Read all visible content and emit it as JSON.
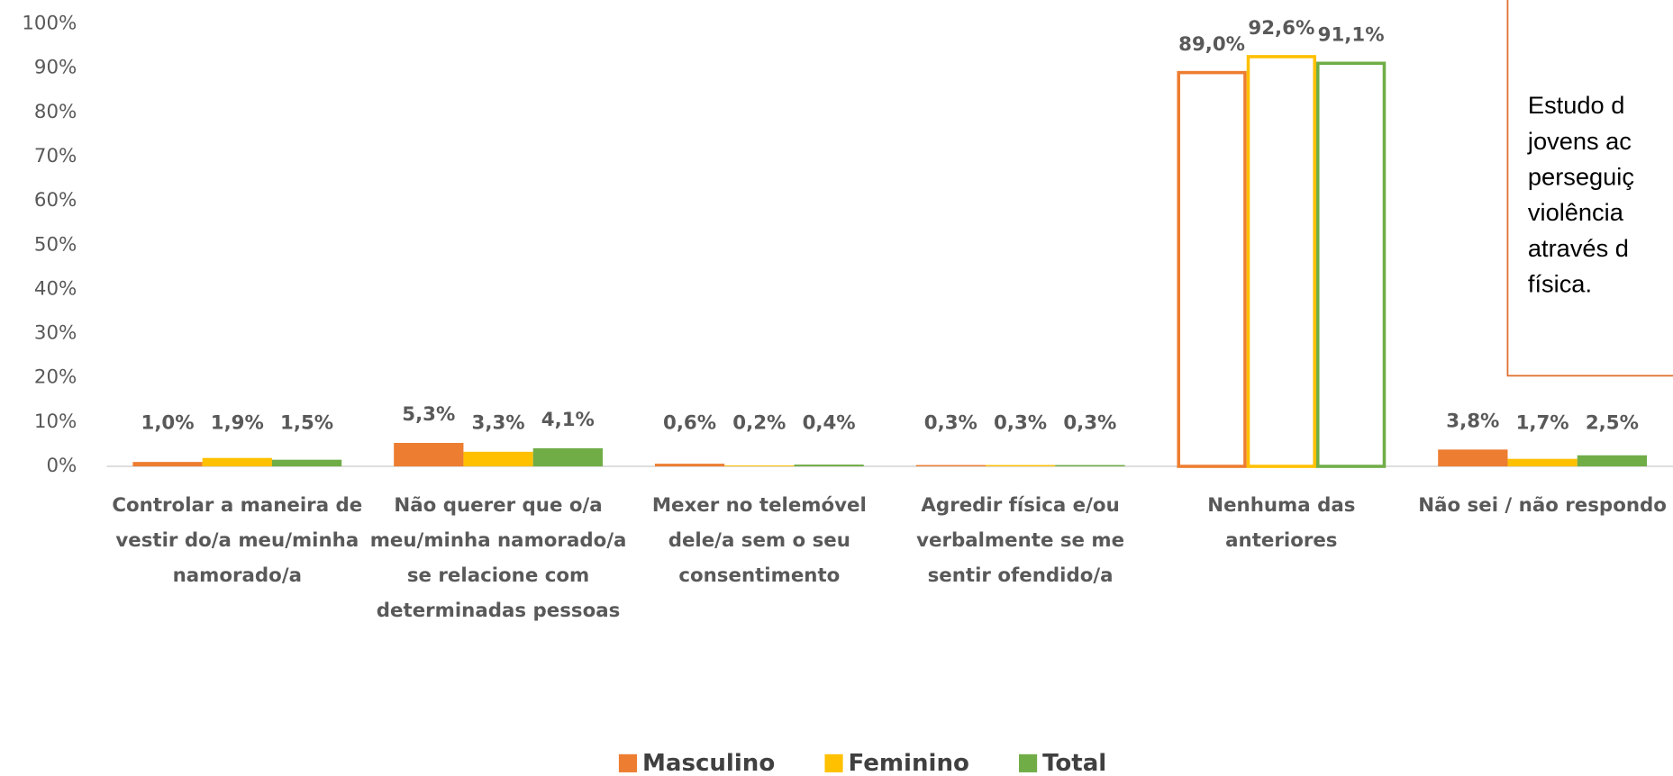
{
  "chart_data": {
    "type": "bar",
    "categories": [
      "Controlar a maneira de vestir do/a meu/minha namorado/a",
      "Não querer que o/a meu/minha namorado/a se relacione com determinadas pessoas",
      "Mexer no telemóvel dele/a sem o seu consentimento",
      "Agredir física e/ou verbalmente se me sentir ofendido/a",
      "Nenhuma das anteriores",
      "Não sei / não respondo"
    ],
    "series": [
      {
        "name": "Masculino",
        "color": "#ed7d31",
        "values": [
          1.0,
          5.3,
          0.6,
          0.3,
          89.0,
          3.8
        ],
        "value_labels": [
          "1,0%",
          "5,3%",
          "0,6%",
          "0,3%",
          "89,0%",
          "3,8%"
        ]
      },
      {
        "name": "Feminino",
        "color": "#ffc000",
        "values": [
          1.9,
          3.3,
          0.2,
          0.3,
          92.6,
          1.7
        ],
        "value_labels": [
          "1,9%",
          "3,3%",
          "0,2%",
          "0,3%",
          "92,6%",
          "1,7%"
        ]
      },
      {
        "name": "Total",
        "color": "#70ad47",
        "values": [
          1.5,
          4.1,
          0.4,
          0.3,
          91.1,
          2.5
        ],
        "value_labels": [
          "1,5%",
          "4,1%",
          "0,4%",
          "0,3%",
          "91,1%",
          "2,5%"
        ]
      }
    ],
    "bar_fill": [
      "solid",
      "solid",
      "solid",
      "solid",
      "outline",
      "solid"
    ],
    "ylim": [
      0,
      100
    ],
    "yticks": [
      {
        "value": 0,
        "label": "0%"
      },
      {
        "value": 10,
        "label": "10%"
      },
      {
        "value": 20,
        "label": "20%"
      },
      {
        "value": 30,
        "label": "30%"
      },
      {
        "value": 40,
        "label": "40%"
      },
      {
        "value": 50,
        "label": "50%"
      },
      {
        "value": 60,
        "label": "60%"
      },
      {
        "value": 70,
        "label": "70%"
      },
      {
        "value": 80,
        "label": "80%"
      },
      {
        "value": 90,
        "label": "90%"
      },
      {
        "value": 100,
        "label": "100%"
      }
    ],
    "grid": false,
    "legend": "bottom",
    "annotation": {
      "lines": [
        "Estudo d",
        "jovens ac",
        "perseguiç",
        "violência",
        "através d",
        "física."
      ]
    }
  }
}
